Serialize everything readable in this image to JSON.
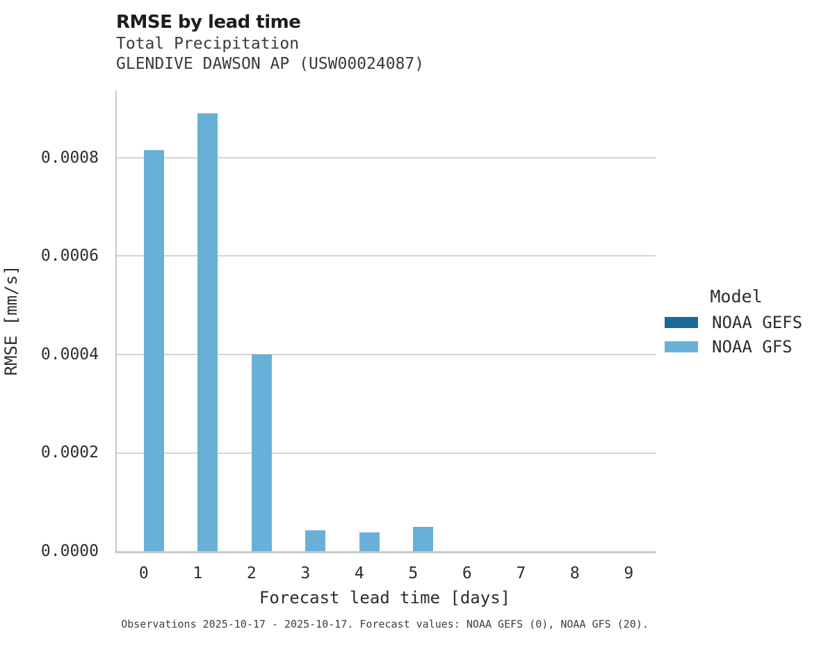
{
  "header": {
    "title": "RMSE by lead time",
    "subtitle_variable": "Total Precipitation",
    "subtitle_station": "GLENDIVE DAWSON AP (USW00024087)"
  },
  "legend": {
    "title": "Model",
    "entries": [
      {
        "label": "NOAA GEFS",
        "color": "#1d6996"
      },
      {
        "label": "NOAA GFS",
        "color": "#69b0d8"
      }
    ]
  },
  "caption": "Observations 2025-10-17 - 2025-10-17. Forecast values: NOAA GEFS (0), NOAA GFS (20).",
  "colors": {
    "noaa_gefs": "#1d6996",
    "noaa_gfs": "#69b0d8",
    "gridline": "#d4d4d4",
    "spine": "#c9c9c9"
  },
  "chart_data": {
    "type": "bar",
    "title": "RMSE by lead time",
    "subtitle": [
      "Total Precipitation",
      "GLENDIVE DAWSON AP (USW00024087)"
    ],
    "xlabel": "Forecast lead time [days]",
    "ylabel": "RMSE [mm/s]",
    "categories": [
      "0",
      "1",
      "2",
      "3",
      "4",
      "5",
      "6",
      "7",
      "8",
      "9"
    ],
    "series": [
      {
        "name": "NOAA GEFS",
        "color": "#1d6996",
        "values": [
          null,
          null,
          null,
          null,
          null,
          null,
          null,
          null,
          null,
          null
        ]
      },
      {
        "name": "NOAA GFS",
        "color": "#69b0d8",
        "values": [
          0.000815,
          0.00089,
          0.0004,
          4.2e-05,
          3.8e-05,
          4.9e-05,
          0,
          0,
          0,
          0
        ]
      }
    ],
    "ylim": [
      0,
      0.000937
    ],
    "yticks": [
      0.0,
      0.0002,
      0.0004,
      0.0006,
      0.0008
    ],
    "ytick_labels": [
      "0.0000",
      "0.0002",
      "0.0004",
      "0.0006",
      "0.0008"
    ],
    "grid": "horizontal",
    "legend_title": "Model",
    "legend_position": "right"
  }
}
